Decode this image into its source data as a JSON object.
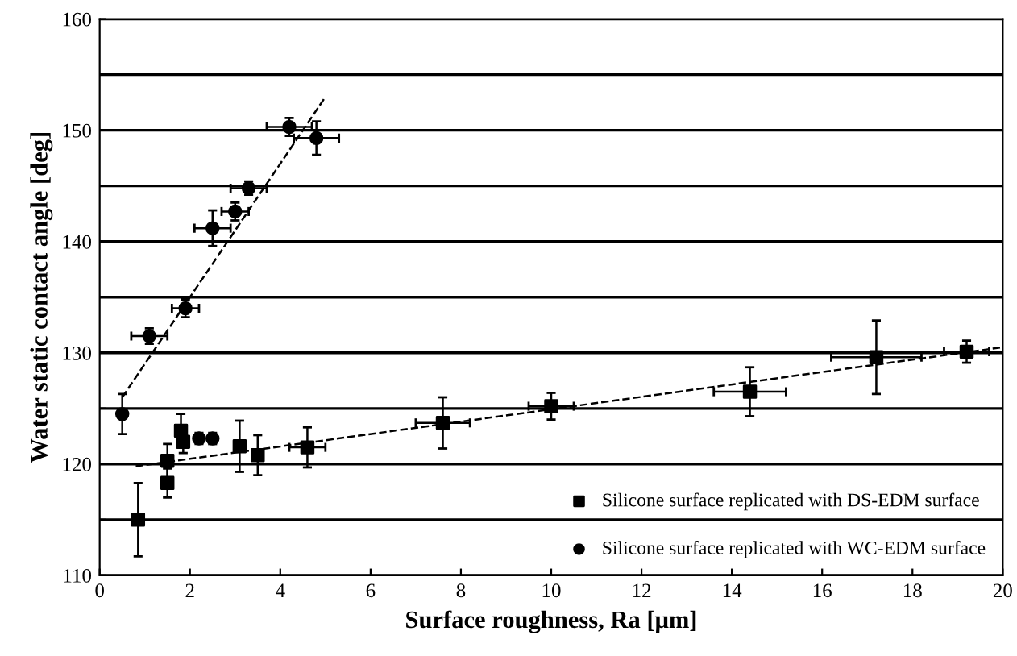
{
  "chart_data": {
    "type": "scatter",
    "xlabel": "Surface roughness, Ra [μm]",
    "ylabel": "Water static contact angle [deg]",
    "xlim": [
      0,
      20
    ],
    "xticks": [
      0,
      2,
      4,
      6,
      8,
      10,
      12,
      14,
      16,
      18,
      20
    ],
    "ylim": [
      110,
      160
    ],
    "yticks": [
      110,
      {
        "value": 115,
        "label": null
      },
      120,
      {
        "value": 125,
        "label": null
      },
      130,
      {
        "value": 135,
        "label": null
      },
      140,
      {
        "value": 145,
        "label": null
      },
      150,
      {
        "value": 155,
        "label": null
      },
      160
    ],
    "grid": "y",
    "legend": "bottom right",
    "series": [
      {
        "name": "Silicone surface replicated with DS-EDM surface",
        "color": "#000000",
        "marker": "square",
        "x": [
          0.85,
          1.5,
          1.5,
          1.8,
          1.85,
          3.1,
          3.5,
          4.6,
          7.6,
          10.0,
          14.4,
          17.2,
          19.2
        ],
        "values": [
          115,
          118.3,
          120.3,
          123,
          122,
          121.6,
          120.8,
          121.5,
          123.7,
          125.2,
          126.5,
          129.6,
          130.1
        ],
        "errors": [
          3.3,
          1.3,
          1.5,
          1.5,
          1,
          2.3,
          1.8,
          1.8,
          2.3,
          1.2,
          2.2,
          3.3,
          1
        ],
        "xerrors": [
          null,
          null,
          null,
          null,
          null,
          null,
          null,
          0.4,
          0.6,
          0.5,
          0.8,
          1,
          0.5
        ]
      },
      {
        "name": "Silicone surface replicated with WC-EDM surface",
        "color": "#000000",
        "marker": "circle",
        "x": [
          0.5,
          1.1,
          1.9,
          2.2,
          2.5,
          2.5,
          3.0,
          3.3,
          4.2,
          4.8
        ],
        "values": [
          124.5,
          131.5,
          134,
          122.3,
          122.3,
          141.2,
          142.7,
          144.8,
          150.3,
          149.3
        ],
        "errors": [
          1.8,
          0.7,
          0.8,
          0.5,
          0.5,
          1.6,
          0.8,
          0.6,
          0.8,
          1.5
        ],
        "xerrors": [
          null,
          0.4,
          0.3,
          null,
          null,
          0.4,
          0.3,
          0.4,
          0.5,
          0.5
        ]
      },
      {
        "type": "line",
        "line_style": "dashed",
        "color": "#000000",
        "marker": "none",
        "x": [
          0.8,
          20
        ],
        "values": [
          119.8,
          130.5
        ]
      },
      {
        "type": "line",
        "line_style": "dashed",
        "color": "#000000",
        "marker": "none",
        "x": [
          0.5,
          5.0
        ],
        "values": [
          126,
          153
        ]
      }
    ]
  }
}
